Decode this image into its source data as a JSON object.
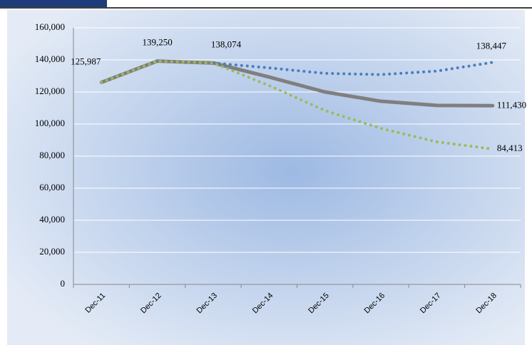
{
  "chart_data": {
    "type": "line",
    "categories": [
      "Dec-11",
      "Dec-12",
      "Dec-13",
      "Dec-14",
      "Dec-15",
      "Dec-16",
      "Dec-17",
      "Dec-18"
    ],
    "series": [
      {
        "color": "#7f7f7f",
        "style": "solid",
        "values": [
          125987,
          139250,
          138074,
          129300,
          120000,
          114200,
          111600,
          111430
        ],
        "value_labels": [
          "125,987",
          "139,250",
          "138,074",
          null,
          null,
          null,
          null,
          "111,430"
        ]
      },
      {
        "color": "#4a7ebb",
        "style": "dotted",
        "values": [
          null,
          null,
          138074,
          135000,
          131600,
          130800,
          133000,
          138447
        ],
        "value_labels": [
          null,
          null,
          null,
          null,
          null,
          null,
          null,
          "138,447"
        ]
      },
      {
        "color": "#9bbb59",
        "style": "dotted",
        "values": [
          125987,
          139250,
          138074,
          124000,
          108400,
          97300,
          88900,
          84413
        ],
        "value_labels": [
          null,
          null,
          null,
          null,
          null,
          null,
          null,
          "84,413"
        ]
      }
    ],
    "ylim": [
      0,
      160000
    ],
    "yticks": [
      0,
      {
        "value": 20000,
        "label": "20,000"
      },
      {
        "value": 40000,
        "label": "40,000"
      },
      {
        "value": 60000,
        "label": "60,000"
      },
      {
        "value": 80000,
        "label": "80,000"
      },
      {
        "value": 100000,
        "label": "100,000"
      },
      {
        "value": 120000,
        "label": "120,000"
      },
      {
        "value": 140000,
        "label": "140,000"
      },
      {
        "value": 160000,
        "label": "160,000"
      }
    ],
    "grid": true
  }
}
